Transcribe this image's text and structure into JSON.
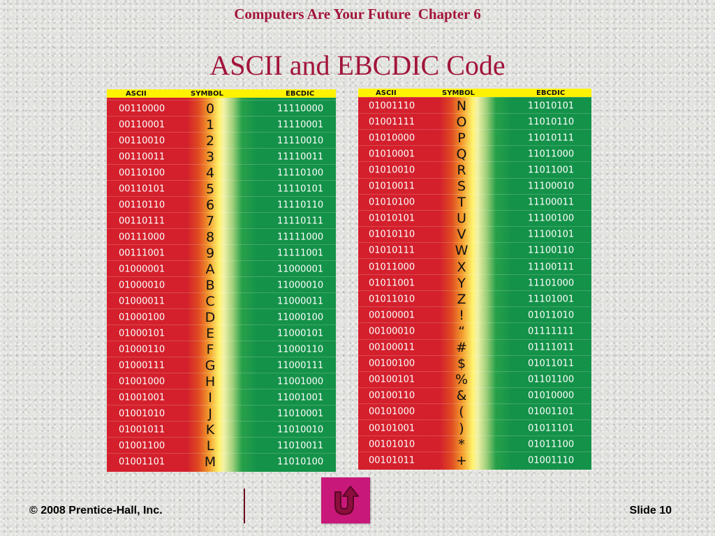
{
  "slide": {
    "header": "Computers Are Your Future  Chapter 6",
    "title": "ASCII and EBCDIC Code",
    "copyright": "© 2008 Prentice-Hall, Inc.",
    "slide_number": "Slide 10"
  },
  "columns": {
    "ascii": "ASCII",
    "symbol": "SYMBOL",
    "ebcdic": "EBCDIC"
  },
  "tables": [
    {
      "rows": [
        {
          "ascii": "00110000",
          "symbol": "0",
          "ebcdic": "11110000"
        },
        {
          "ascii": "00110001",
          "symbol": "1",
          "ebcdic": "11110001"
        },
        {
          "ascii": "00110010",
          "symbol": "2",
          "ebcdic": "11110010"
        },
        {
          "ascii": "00110011",
          "symbol": "3",
          "ebcdic": "11110011"
        },
        {
          "ascii": "00110100",
          "symbol": "4",
          "ebcdic": "11110100"
        },
        {
          "ascii": "00110101",
          "symbol": "5",
          "ebcdic": "11110101"
        },
        {
          "ascii": "00110110",
          "symbol": "6",
          "ebcdic": "11110110"
        },
        {
          "ascii": "00110111",
          "symbol": "7",
          "ebcdic": "11110111"
        },
        {
          "ascii": "00111000",
          "symbol": "8",
          "ebcdic": "11111000"
        },
        {
          "ascii": "00111001",
          "symbol": "9",
          "ebcdic": "11111001"
        },
        {
          "ascii": "01000001",
          "symbol": "A",
          "ebcdic": "11000001"
        },
        {
          "ascii": "01000010",
          "symbol": "B",
          "ebcdic": "11000010"
        },
        {
          "ascii": "01000011",
          "symbol": "C",
          "ebcdic": "11000011"
        },
        {
          "ascii": "01000100",
          "symbol": "D",
          "ebcdic": "11000100"
        },
        {
          "ascii": "01000101",
          "symbol": "E",
          "ebcdic": "11000101"
        },
        {
          "ascii": "01000110",
          "symbol": "F",
          "ebcdic": "11000110"
        },
        {
          "ascii": "01000111",
          "symbol": "G",
          "ebcdic": "11000111"
        },
        {
          "ascii": "01001000",
          "symbol": "H",
          "ebcdic": "11001000"
        },
        {
          "ascii": "01001001",
          "symbol": "I",
          "ebcdic": "11001001"
        },
        {
          "ascii": "01001010",
          "symbol": "J",
          "ebcdic": "11010001"
        },
        {
          "ascii": "01001011",
          "symbol": "K",
          "ebcdic": "11010010"
        },
        {
          "ascii": "01001100",
          "symbol": "L",
          "ebcdic": "11010011"
        },
        {
          "ascii": "01001101",
          "symbol": "M",
          "ebcdic": "11010100"
        }
      ]
    },
    {
      "rows": [
        {
          "ascii": "01001110",
          "symbol": "N",
          "ebcdic": "11010101"
        },
        {
          "ascii": "01001111",
          "symbol": "O",
          "ebcdic": "11010110"
        },
        {
          "ascii": "01010000",
          "symbol": "P",
          "ebcdic": "11010111"
        },
        {
          "ascii": "01010001",
          "symbol": "Q",
          "ebcdic": "11011000"
        },
        {
          "ascii": "01010010",
          "symbol": "R",
          "ebcdic": "11011001"
        },
        {
          "ascii": "01010011",
          "symbol": "S",
          "ebcdic": "11100010"
        },
        {
          "ascii": "01010100",
          "symbol": "T",
          "ebcdic": "11100011"
        },
        {
          "ascii": "01010101",
          "symbol": "U",
          "ebcdic": "11100100"
        },
        {
          "ascii": "01010110",
          "symbol": "V",
          "ebcdic": "11100101"
        },
        {
          "ascii": "01010111",
          "symbol": "W",
          "ebcdic": "11100110"
        },
        {
          "ascii": "01011000",
          "symbol": "X",
          "ebcdic": "11100111"
        },
        {
          "ascii": "01011001",
          "symbol": "Y",
          "ebcdic": "11101000"
        },
        {
          "ascii": "01011010",
          "symbol": "Z",
          "ebcdic": "11101001"
        },
        {
          "ascii": "00100001",
          "symbol": "!",
          "ebcdic": "01011010"
        },
        {
          "ascii": "00100010",
          "symbol": "“",
          "ebcdic": "01111111"
        },
        {
          "ascii": "00100011",
          "symbol": "#",
          "ebcdic": "01111011"
        },
        {
          "ascii": "00100100",
          "symbol": "$",
          "ebcdic": "01011011"
        },
        {
          "ascii": "00100101",
          "symbol": "%",
          "ebcdic": "01101100"
        },
        {
          "ascii": "00100110",
          "symbol": "&",
          "ebcdic": "01010000"
        },
        {
          "ascii": "00101000",
          "symbol": "(",
          "ebcdic": "01001101"
        },
        {
          "ascii": "00101001",
          "symbol": ")",
          "ebcdic": "01011101"
        },
        {
          "ascii": "00101010",
          "symbol": "*",
          "ebcdic": "01011100"
        },
        {
          "ascii": "00101011",
          "symbol": "+",
          "ebcdic": "01001110"
        }
      ]
    }
  ],
  "nav": {
    "return_icon": "return-u-turn-icon",
    "button_color": "#c8197a"
  }
}
